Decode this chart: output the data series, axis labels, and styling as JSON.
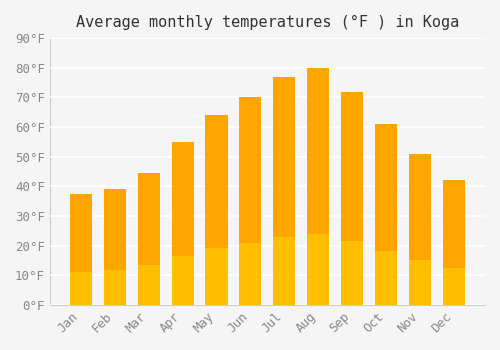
{
  "title": "Average monthly temperatures (°F ) in Koga",
  "months": [
    "Jan",
    "Feb",
    "Mar",
    "Apr",
    "May",
    "Jun",
    "Jul",
    "Aug",
    "Sep",
    "Oct",
    "Nov",
    "Dec"
  ],
  "values": [
    37.5,
    39,
    44.5,
    55,
    64,
    70,
    77,
    80,
    72,
    61,
    51,
    42
  ],
  "bar_color_top": "#FFA500",
  "bar_color_bottom": "#FFD700",
  "ylim": [
    0,
    90
  ],
  "yticks": [
    0,
    10,
    20,
    30,
    40,
    50,
    60,
    70,
    80,
    90
  ],
  "background_color": "#f5f5f5",
  "grid_color": "#ffffff",
  "title_fontsize": 11,
  "tick_fontsize": 9
}
